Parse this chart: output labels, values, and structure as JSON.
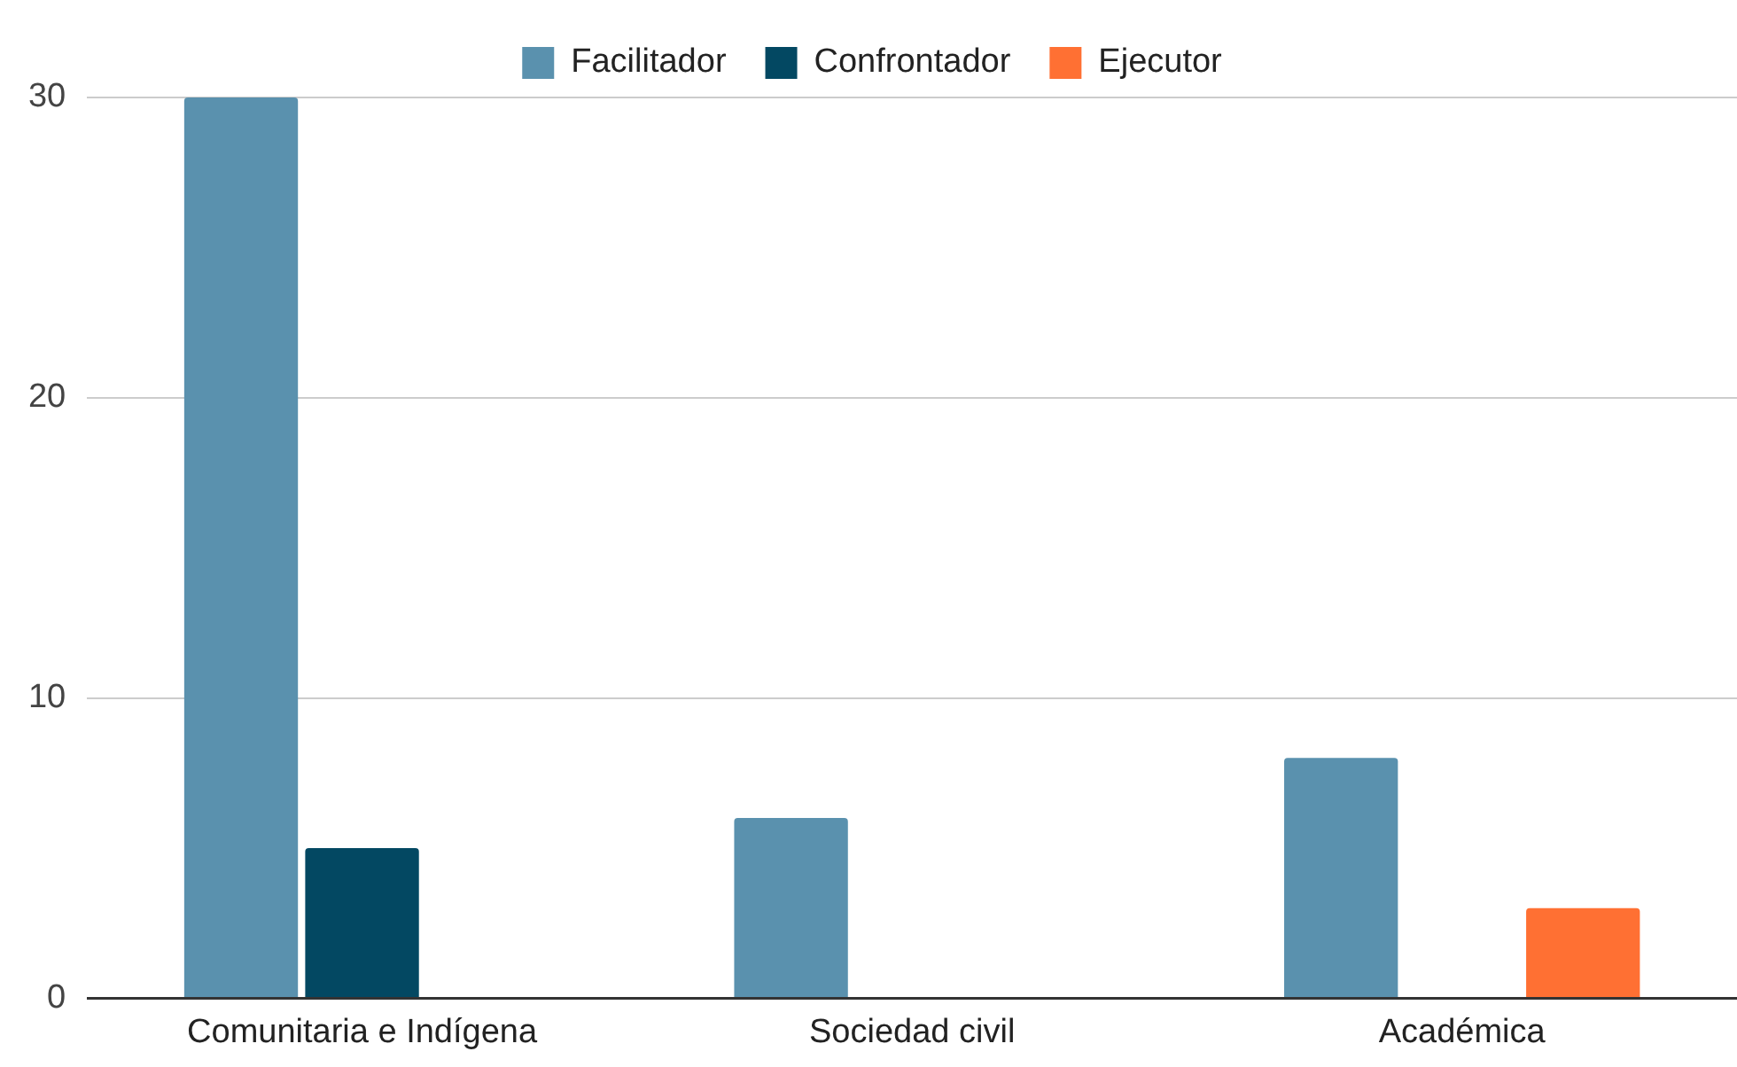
{
  "chart_data": {
    "type": "bar",
    "categories": [
      "Comunitaria e Indígena",
      "Sociedad civil",
      "Académica"
    ],
    "series": [
      {
        "name": "Facilitador",
        "color": "#5a91ae",
        "values": [
          30,
          6,
          8
        ]
      },
      {
        "name": "Confrontador",
        "color": "#034862",
        "values": [
          5,
          null,
          null
        ]
      },
      {
        "name": "Ejecutor",
        "color": "#ff7033",
        "values": [
          null,
          null,
          3
        ]
      }
    ],
    "ylim": [
      0,
      30
    ],
    "yticks": [
      0,
      10,
      20,
      30
    ],
    "grid": "y",
    "legend": "top"
  }
}
